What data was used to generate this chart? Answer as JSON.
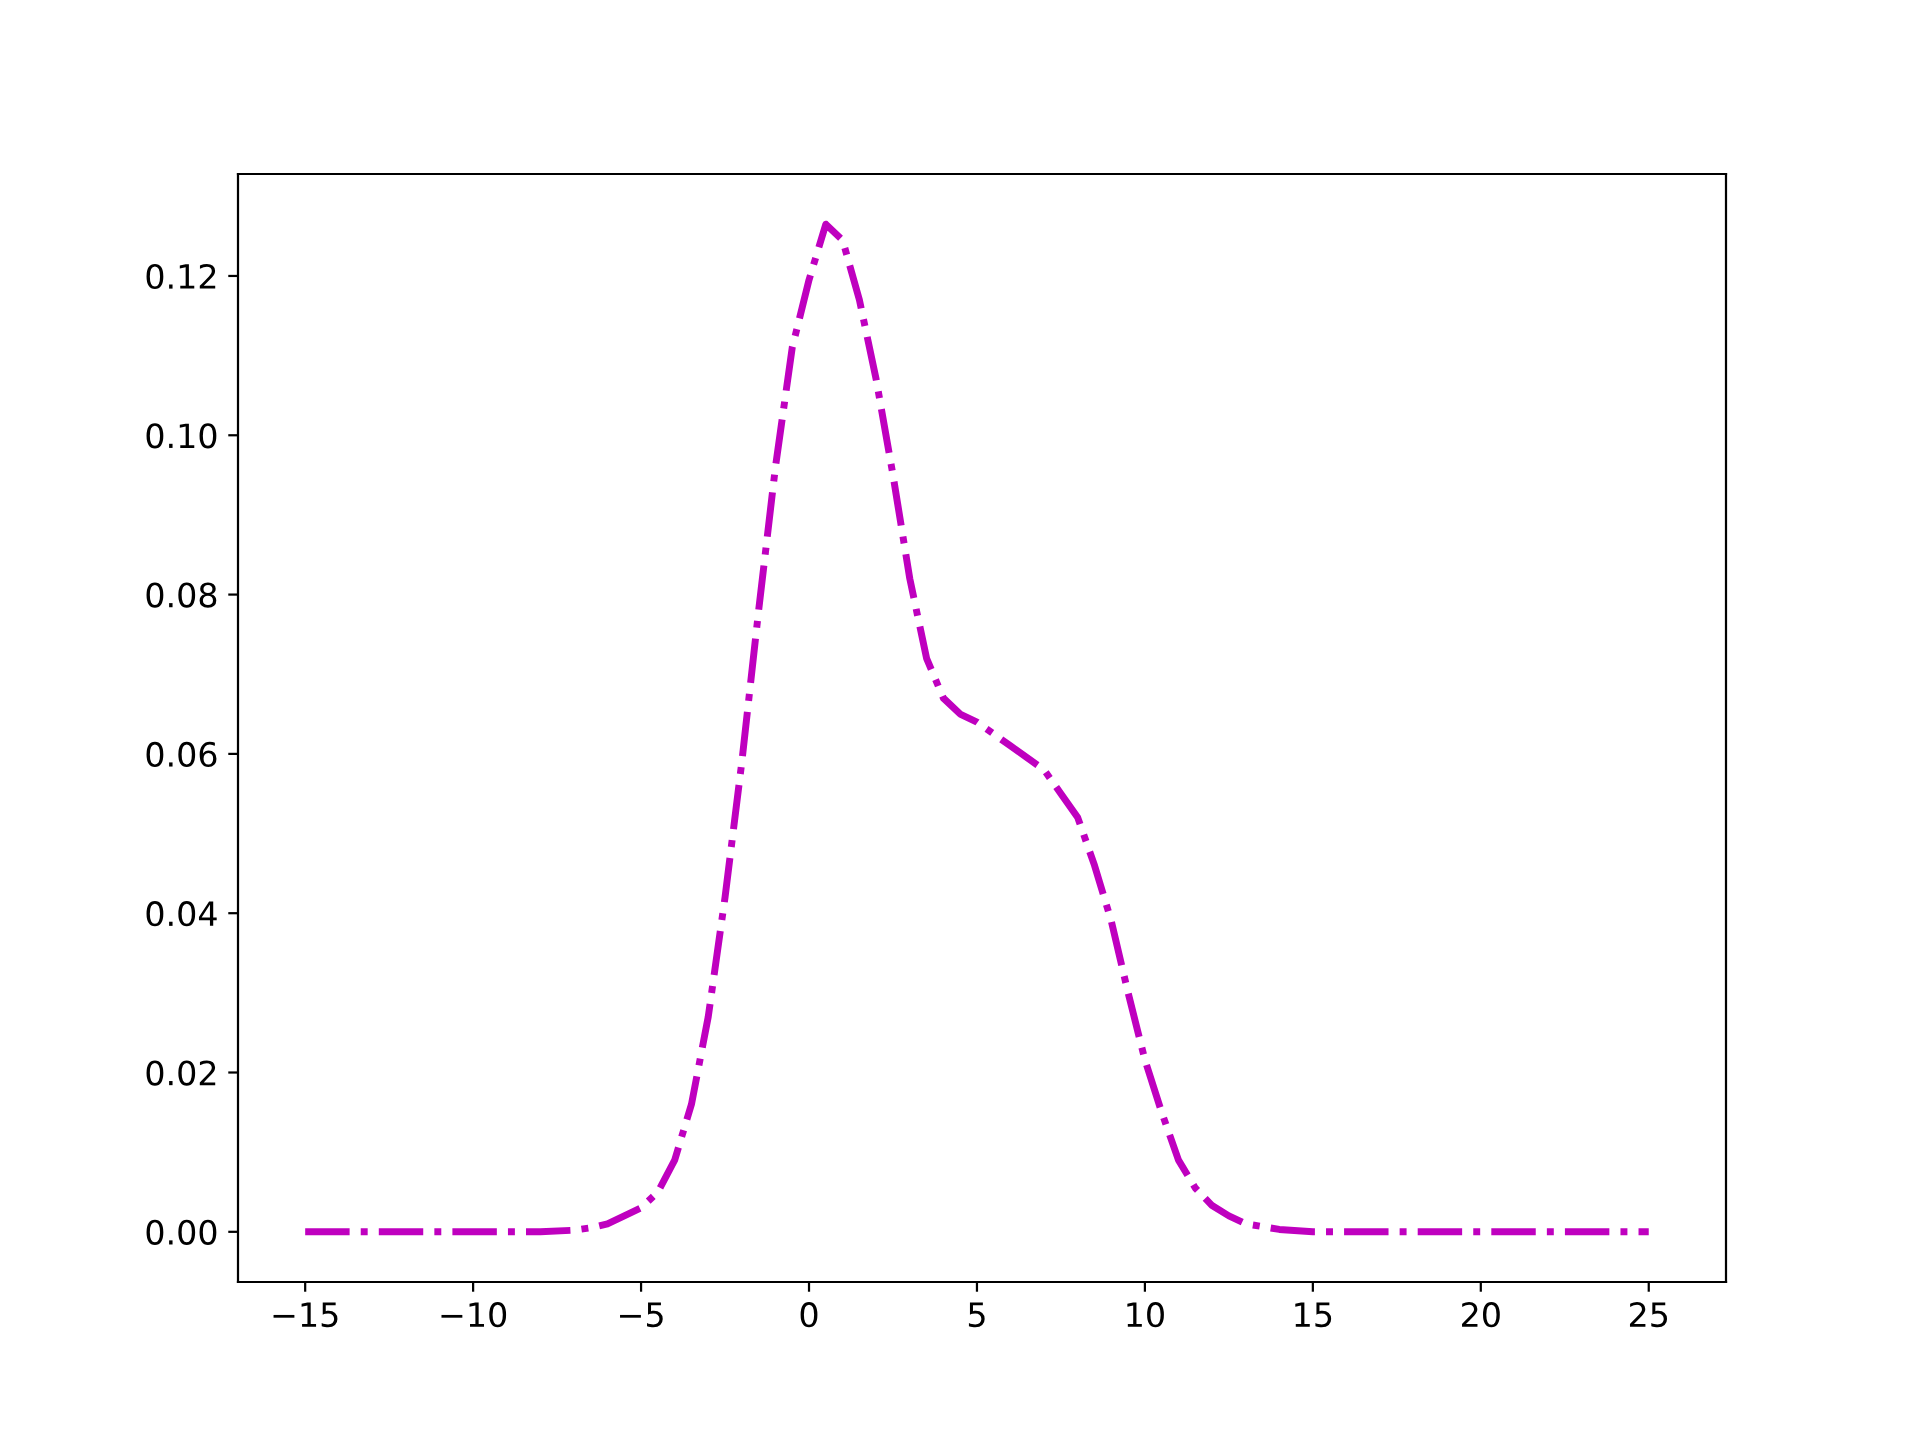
{
  "chart_data": {
    "type": "line",
    "x": [
      -15,
      -13,
      -11,
      -9,
      -8,
      -7,
      -6.5,
      -6,
      -5.5,
      -5,
      -4.5,
      -4,
      -3.5,
      -3,
      -2.5,
      -2,
      -1.5,
      -1,
      -0.5,
      0,
      0.5,
      1,
      1.5,
      2,
      2.5,
      3,
      3.5,
      4,
      4.5,
      5,
      5.5,
      6,
      6.5,
      7,
      7.5,
      8,
      8.5,
      9,
      9.5,
      10,
      10.5,
      11,
      11.5,
      12,
      12.5,
      13,
      14,
      15,
      17,
      19,
      21,
      23,
      25
    ],
    "series": [
      {
        "color": "#bf00bf",
        "values": [
          0,
          0,
          0,
          0,
          0,
          0.0002,
          0.0005,
          0.001,
          0.002,
          0.003,
          0.005,
          0.009,
          0.016,
          0.027,
          0.042,
          0.059,
          0.078,
          0.096,
          0.111,
          0.1195,
          0.1265,
          0.1245,
          0.117,
          0.107,
          0.095,
          0.082,
          0.072,
          0.067,
          0.065,
          0.064,
          0.0625,
          0.061,
          0.0595,
          0.058,
          0.055,
          0.052,
          0.046,
          0.039,
          0.03,
          0.0216,
          0.015,
          0.009,
          0.0055,
          0.0033,
          0.002,
          0.001,
          0.0003,
          0,
          0,
          0,
          0,
          0,
          0
        ]
      }
    ],
    "xlim": [
      -17,
      27.3
    ],
    "xticks": [
      {
        "value": -15,
        "label": "−15"
      },
      {
        "value": -10,
        "label": "−10"
      },
      {
        "value": -5,
        "label": "−5"
      },
      0,
      5,
      10,
      15,
      20,
      25
    ],
    "ylim": [
      -0.0063,
      0.1328
    ],
    "yticks": [
      {
        "value": 0,
        "label": "0.00"
      },
      {
        "value": 0.02,
        "label": "0.02"
      },
      {
        "value": 0.04,
        "label": "0.04"
      },
      {
        "value": 0.06,
        "label": "0.06"
      },
      {
        "value": 0.08,
        "label": "0.08"
      },
      {
        "value": 0.1,
        "label": "0.10"
      },
      {
        "value": 0.12,
        "label": "0.12"
      }
    ],
    "line_style": "dashdot",
    "grid": false,
    "legend": false,
    "marker": "none"
  }
}
